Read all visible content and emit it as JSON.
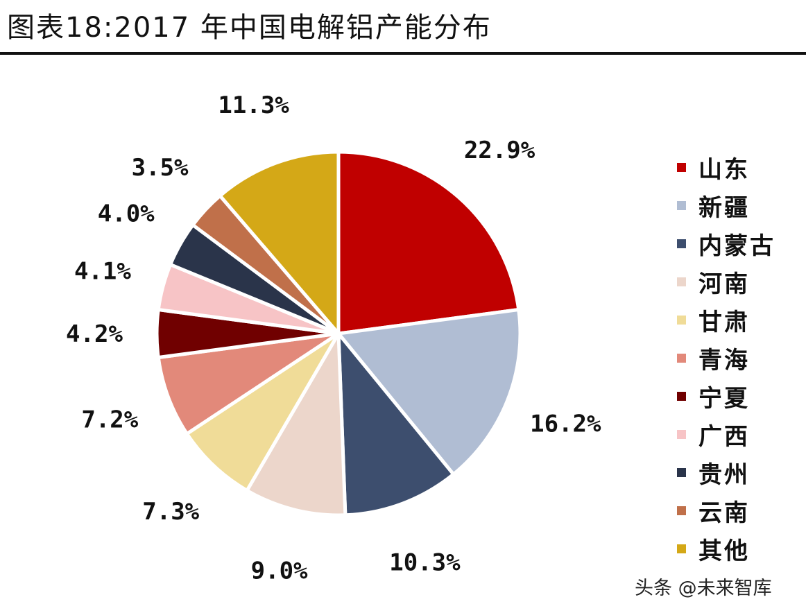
{
  "title": "图表18:2017 年中国电解铝产能分布",
  "watermark": "头条 @未来智库",
  "chart_data": {
    "type": "pie",
    "title": "图表18:2017 年中国电解铝产能分布",
    "legend_position": "right",
    "start_angle": "12 o'clock, clockwise",
    "slices": [
      {
        "label": "山东",
        "value": 22.9,
        "text": "22.9%",
        "color": "#C00000"
      },
      {
        "label": "新疆",
        "value": 16.2,
        "text": "16.2%",
        "color": "#B0BDD3"
      },
      {
        "label": "内蒙古",
        "value": 10.3,
        "text": "10.3%",
        "color": "#3D4E6E"
      },
      {
        "label": "河南",
        "value": 9.0,
        "text": "9.0%",
        "color": "#ECD6CB"
      },
      {
        "label": "甘肃",
        "value": 7.3,
        "text": "7.3%",
        "color": "#F0DC98"
      },
      {
        "label": "青海",
        "value": 7.2,
        "text": "7.2%",
        "color": "#E2897A"
      },
      {
        "label": "宁夏",
        "value": 4.2,
        "text": "4.2%",
        "color": "#700000"
      },
      {
        "label": "广西",
        "value": 4.1,
        "text": "4.1%",
        "color": "#F7C4C6"
      },
      {
        "label": "贵州",
        "value": 4.0,
        "text": "4.0%",
        "color": "#2A344A"
      },
      {
        "label": "云南",
        "value": 3.5,
        "text": "3.5%",
        "color": "#C0704A"
      },
      {
        "label": "其他",
        "value": 11.3,
        "text": "11.3%",
        "color": "#D4A817"
      }
    ]
  }
}
